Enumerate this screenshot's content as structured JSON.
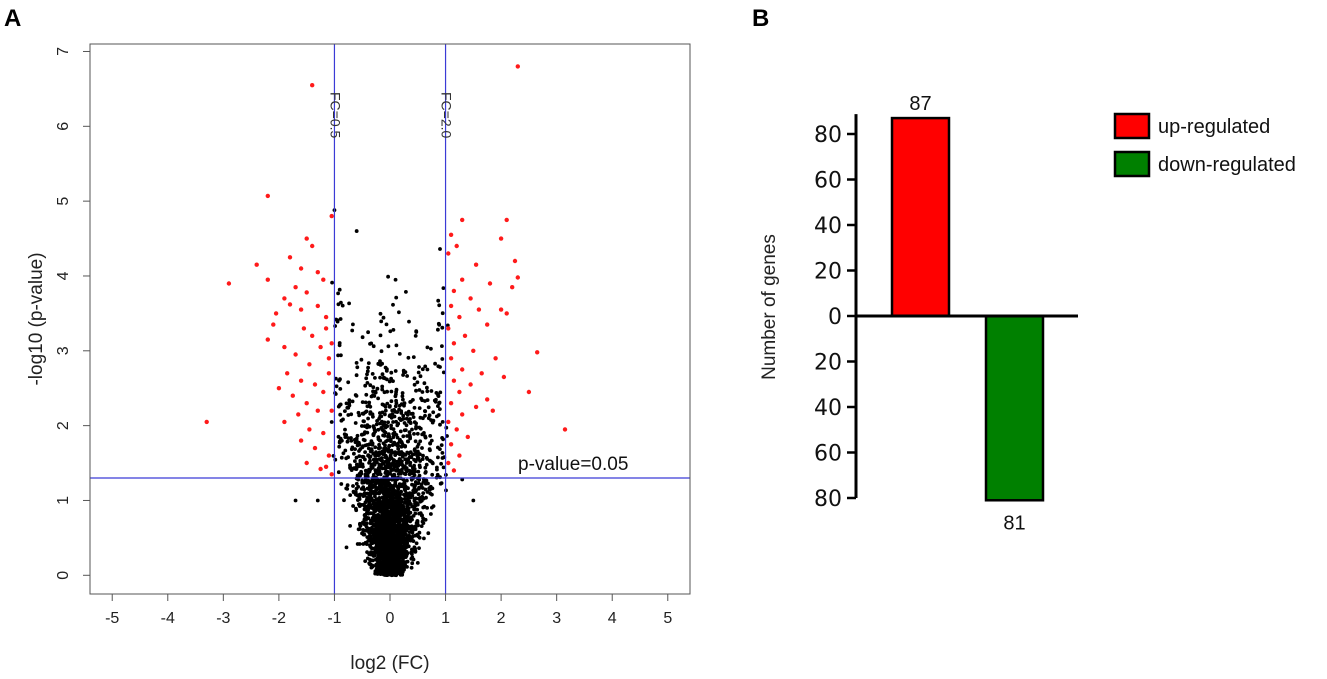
{
  "panels": {
    "a_label": "A",
    "b_label": "B"
  },
  "chart_data": [
    {
      "type": "scatter",
      "title": "",
      "xlabel": "log2 (FC)",
      "ylabel": "-log10 (p-value)",
      "xlim": [
        -5.4,
        5.4
      ],
      "ylim": [
        -0.25,
        7.1
      ],
      "xticks": [
        -5,
        -4,
        -3,
        -2,
        -1,
        0,
        1,
        2,
        3,
        4,
        5
      ],
      "yticks": [
        0,
        1,
        2,
        3,
        4,
        5,
        6,
        7
      ],
      "reference_lines": [
        {
          "orientation": "vertical",
          "value": -1,
          "label": "FC=0.5",
          "color": "#3b3bd6"
        },
        {
          "orientation": "vertical",
          "value": 1,
          "label": "FC=2.0",
          "color": "#3b3bd6"
        },
        {
          "orientation": "horizontal",
          "value": 1.3,
          "label": "p-value=0.05",
          "color": "#3b3bd6"
        }
      ],
      "series": [
        {
          "name": "significant",
          "color": "#ff1a1a",
          "points": [
            [
              -1.4,
              6.55
            ],
            [
              -2.2,
              5.07
            ],
            [
              -1.05,
              4.8
            ],
            [
              -1.5,
              4.5
            ],
            [
              -1.4,
              4.4
            ],
            [
              -2.4,
              4.15
            ],
            [
              -2.2,
              3.95
            ],
            [
              -2.9,
              3.9
            ],
            [
              -1.8,
              4.25
            ],
            [
              -1.6,
              4.1
            ],
            [
              -1.3,
              4.05
            ],
            [
              -1.2,
              3.95
            ],
            [
              -1.7,
              3.85
            ],
            [
              -1.5,
              3.78
            ],
            [
              -1.9,
              3.7
            ],
            [
              -2.05,
              3.5
            ],
            [
              -2.1,
              3.35
            ],
            [
              -1.8,
              3.62
            ],
            [
              -1.6,
              3.55
            ],
            [
              -1.3,
              3.6
            ],
            [
              -1.15,
              3.45
            ],
            [
              -1.55,
              3.3
            ],
            [
              -2.2,
              3.15
            ],
            [
              -1.9,
              3.05
            ],
            [
              -1.7,
              2.95
            ],
            [
              -1.4,
              3.2
            ],
            [
              -1.25,
              3.05
            ],
            [
              -1.1,
              2.9
            ],
            [
              -1.45,
              2.82
            ],
            [
              -1.85,
              2.7
            ],
            [
              -1.6,
              2.6
            ],
            [
              -1.35,
              2.55
            ],
            [
              -1.2,
              2.45
            ],
            [
              -1.75,
              2.4
            ],
            [
              -2.0,
              2.5
            ],
            [
              -1.5,
              2.3
            ],
            [
              -1.3,
              2.2
            ],
            [
              -1.65,
              2.15
            ],
            [
              -1.9,
              2.05
            ],
            [
              -1.45,
              1.95
            ],
            [
              -1.2,
              1.9
            ],
            [
              -1.6,
              1.8
            ],
            [
              -1.35,
              1.7
            ],
            [
              -1.1,
              1.6
            ],
            [
              -1.5,
              1.5
            ],
            [
              -1.25,
              1.42
            ],
            [
              -1.05,
              1.35
            ],
            [
              -3.3,
              2.05
            ],
            [
              -1.15,
              3.3
            ],
            [
              -1.05,
              3.1
            ],
            [
              -1.1,
              2.7
            ],
            [
              -1.05,
              2.2
            ],
            [
              -1.15,
              1.45
            ],
            [
              2.3,
              6.8
            ],
            [
              1.3,
              4.75
            ],
            [
              2.1,
              4.75
            ],
            [
              1.1,
              4.55
            ],
            [
              2.0,
              4.5
            ],
            [
              1.2,
              4.4
            ],
            [
              1.05,
              4.3
            ],
            [
              1.55,
              4.15
            ],
            [
              2.25,
              4.2
            ],
            [
              1.3,
              3.95
            ],
            [
              2.3,
              3.98
            ],
            [
              1.8,
              3.9
            ],
            [
              2.2,
              3.85
            ],
            [
              1.15,
              3.8
            ],
            [
              1.45,
              3.7
            ],
            [
              1.1,
              3.6
            ],
            [
              1.6,
              3.55
            ],
            [
              2.0,
              3.55
            ],
            [
              2.1,
              3.5
            ],
            [
              1.25,
              3.45
            ],
            [
              1.05,
              3.3
            ],
            [
              1.75,
              3.35
            ],
            [
              1.35,
              3.2
            ],
            [
              1.15,
              3.1
            ],
            [
              2.65,
              2.98
            ],
            [
              1.5,
              3.0
            ],
            [
              1.1,
              2.9
            ],
            [
              1.9,
              2.9
            ],
            [
              1.3,
              2.75
            ],
            [
              1.65,
              2.7
            ],
            [
              2.05,
              2.65
            ],
            [
              1.15,
              2.6
            ],
            [
              1.45,
              2.55
            ],
            [
              1.25,
              2.45
            ],
            [
              2.5,
              2.45
            ],
            [
              1.75,
              2.35
            ],
            [
              1.1,
              2.3
            ],
            [
              1.55,
              2.25
            ],
            [
              1.85,
              2.2
            ],
            [
              1.3,
              2.15
            ],
            [
              1.05,
              2.05
            ],
            [
              1.2,
              1.95
            ],
            [
              1.4,
              1.85
            ],
            [
              1.1,
              1.75
            ],
            [
              1.25,
              1.6
            ],
            [
              1.05,
              1.5
            ],
            [
              1.15,
              1.4
            ],
            [
              3.15,
              1.95
            ]
          ]
        },
        {
          "name": "not significant",
          "color": "#000000",
          "generated": true,
          "count": 2600,
          "seed": 12345
        }
      ]
    },
    {
      "type": "bar",
      "title": "",
      "xlabel": "",
      "ylabel": "Number of genes",
      "ylim": [
        -80,
        87
      ],
      "yticks": [
        80,
        60,
        40,
        20,
        0,
        20,
        40,
        60,
        80
      ],
      "categories": [
        "up-regulated",
        "down-regulated"
      ],
      "values": [
        87,
        -81
      ],
      "value_labels": [
        "87",
        "81"
      ],
      "colors": [
        "#ff0000",
        "#008000"
      ],
      "legend": {
        "position": "top-right",
        "entries": [
          "up-regulated",
          "down-regulated"
        ]
      }
    }
  ]
}
